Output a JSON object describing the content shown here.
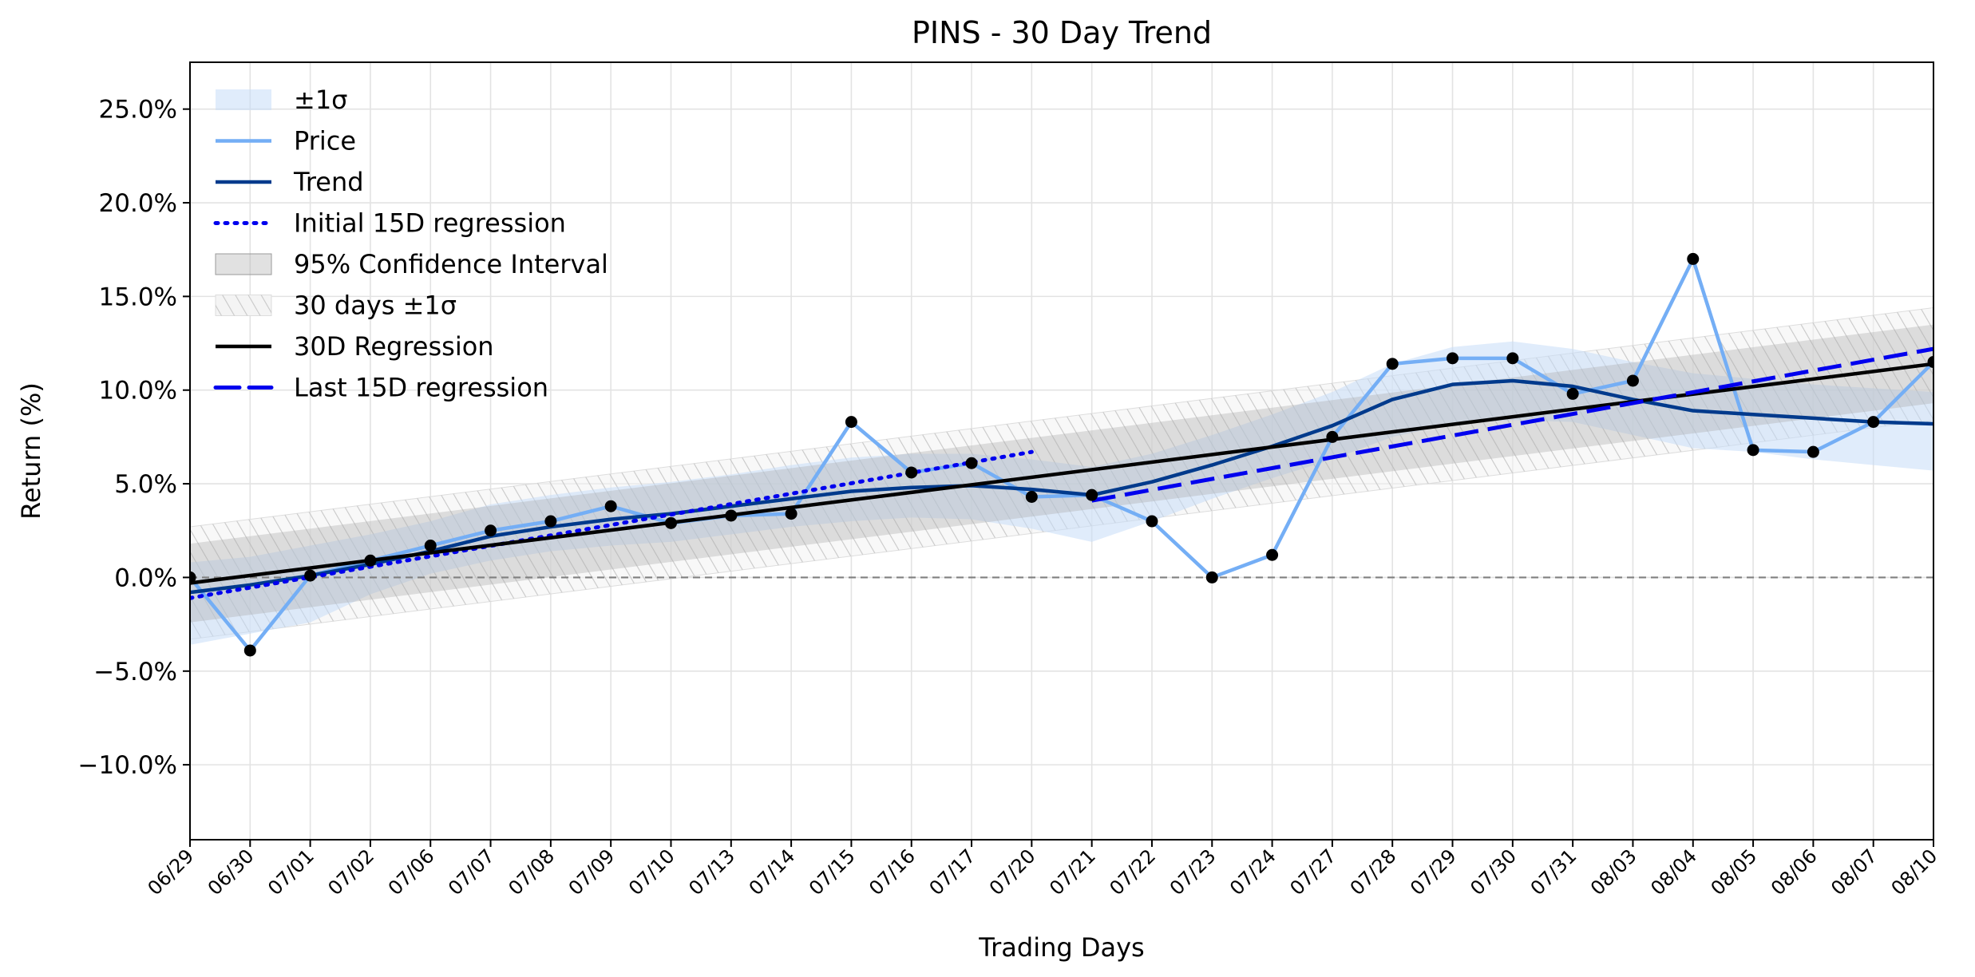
{
  "chart_data": {
    "type": "line",
    "title": "PINS - 30 Day Trend",
    "xlabel": "Trading Days",
    "ylabel": "Return (%)",
    "categories": [
      "06/29",
      "06/30",
      "07/01",
      "07/02",
      "07/06",
      "07/07",
      "07/08",
      "07/09",
      "07/10",
      "07/13",
      "07/14",
      "07/15",
      "07/16",
      "07/17",
      "07/20",
      "07/21",
      "07/22",
      "07/23",
      "07/24",
      "07/27",
      "07/28",
      "07/29",
      "07/30",
      "07/31",
      "08/03",
      "08/04",
      "08/05",
      "08/06",
      "08/07",
      "08/10"
    ],
    "ylim": [
      -14.0,
      27.5
    ],
    "yticks": [
      -10,
      -5,
      0,
      5,
      10,
      15,
      20,
      25
    ],
    "ytick_labels": [
      "−10.0%",
      "−5.0%",
      "0.0%",
      "5.0%",
      "10.0%",
      "15.0%",
      "20.0%",
      "25.0%"
    ],
    "grid": true,
    "legend_position": "top-left",
    "series": [
      {
        "name": "Price",
        "color": "#74aef5",
        "markers": true,
        "values": [
          0.0,
          -3.9,
          0.1,
          0.9,
          1.7,
          2.5,
          3.0,
          3.8,
          2.9,
          3.3,
          3.4,
          8.3,
          5.6,
          6.1,
          4.3,
          4.4,
          3.0,
          0.0,
          1.2,
          7.5,
          11.4,
          11.7,
          11.7,
          9.8,
          10.5,
          17.0,
          6.8,
          6.7,
          8.3,
          11.5
        ]
      },
      {
        "name": "Trend",
        "color": "#003a8c",
        "values": [
          -0.8,
          -0.4,
          0.1,
          0.7,
          1.4,
          2.2,
          2.7,
          3.1,
          3.4,
          3.8,
          4.2,
          4.6,
          4.8,
          4.9,
          4.7,
          4.4,
          5.1,
          6.0,
          7.0,
          8.1,
          9.5,
          10.3,
          10.5,
          10.2,
          9.5,
          8.9,
          8.7,
          8.5,
          8.3,
          8.2
        ]
      },
      {
        "name": "±1σ",
        "color": "#cfe5fb",
        "upper": [
          0.8,
          1.1,
          1.7,
          2.3,
          3.0,
          3.9,
          4.4,
          4.8,
          5.1,
          5.5,
          6.0,
          6.4,
          6.6,
          6.6,
          6.3,
          5.9,
          6.6,
          7.6,
          8.7,
          9.9,
          11.4,
          12.3,
          12.6,
          12.2,
          11.5,
          10.9,
          10.6,
          10.3,
          10.1,
          9.9
        ],
        "lower": [
          -3.6,
          -3.0,
          -2.4,
          -0.9,
          0.2,
          0.9,
          1.4,
          1.7,
          1.9,
          2.3,
          2.7,
          3.0,
          3.2,
          3.1,
          2.6,
          1.9,
          3.0,
          4.2,
          5.3,
          6.3,
          7.5,
          8.2,
          8.4,
          8.3,
          7.6,
          6.9,
          6.7,
          6.3,
          6.0,
          5.7
        ]
      },
      {
        "name": "Initial 15D regression",
        "color": "#0000ee",
        "x": [
          "06/29",
          "07/20"
        ],
        "values": [
          -1.1,
          6.7
        ]
      },
      {
        "name": "Last 15D regression",
        "color": "#0000ee",
        "x": [
          "07/21",
          "08/10"
        ],
        "values": [
          4.1,
          12.2
        ]
      },
      {
        "name": "30D Regression",
        "color": "#000000",
        "x": [
          "06/29",
          "08/10"
        ],
        "values": [
          -0.3,
          11.4
        ]
      },
      {
        "name": "95% Confidence Interval",
        "color": "#b0b0b0",
        "x": [
          "06/29",
          "08/10"
        ],
        "upper": [
          1.8,
          13.5
        ],
        "lower": [
          -2.4,
          9.3
        ]
      },
      {
        "name": "30 days ±1σ",
        "color": "#d8d8d8",
        "x": [
          "06/29",
          "08/10"
        ],
        "upper": [
          2.7,
          14.4
        ],
        "lower": [
          -3.3,
          8.4
        ]
      }
    ],
    "legend": [
      "±1σ",
      "Price",
      "Trend",
      "Initial 15D regression",
      "95% Confidence Interval",
      "30 days ±1σ",
      "30D Regression",
      "Last 15D regression"
    ]
  }
}
